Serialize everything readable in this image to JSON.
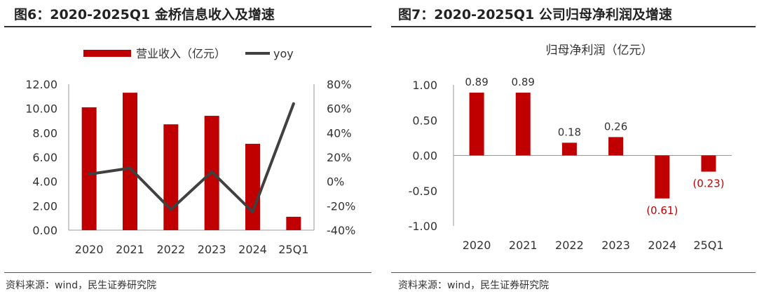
{
  "colors": {
    "bar": "#C00000",
    "line": "#404040",
    "negative_label": "#C00000"
  },
  "left": {
    "title": "图6：2020-2025Q1 金桥信息收入及增速",
    "source": "资料来源：wind，民生证券研究院"
  },
  "right": {
    "title": "图7：2020-2025Q1 公司归母净利润及增速",
    "source": "资料来源：wind，民生证券研究院"
  },
  "chart_data": [
    {
      "type": "bar",
      "title": "",
      "categories": [
        "2020",
        "2021",
        "2022",
        "2023",
        "2024",
        "25Q1"
      ],
      "series": [
        {
          "name": "营业收入（亿元）",
          "type": "bar",
          "axis": "left",
          "values": [
            10.1,
            11.3,
            8.7,
            9.4,
            7.1,
            1.1
          ]
        },
        {
          "name": "yoy",
          "type": "line",
          "axis": "right",
          "values": [
            6,
            11,
            -23,
            8,
            -25,
            64
          ]
        }
      ],
      "ylim": [
        0,
        12
      ],
      "yticks": [
        "0.00",
        "2.00",
        "4.00",
        "6.00",
        "8.00",
        "10.00",
        "12.00"
      ],
      "y2lim": [
        -40,
        80
      ],
      "y2ticks": [
        "-40%",
        "-20%",
        "0%",
        "20%",
        "40%",
        "60%",
        "80%"
      ],
      "xlabel": "",
      "ylabel": "",
      "legend": "top",
      "grid": false
    },
    {
      "type": "bar",
      "title": "归母净利润（亿元）",
      "categories": [
        "2020",
        "2021",
        "2022",
        "2023",
        "2024",
        "25Q1"
      ],
      "values": [
        0.89,
        0.89,
        0.18,
        0.26,
        -0.61,
        -0.23
      ],
      "labels": [
        "0.89",
        "0.89",
        "0.18",
        "0.26",
        "(0.61)",
        "(0.23)"
      ],
      "ylim": [
        -1,
        1
      ],
      "yticks": [
        "-1.00",
        "-0.50",
        "0.00",
        "0.50",
        "1.00"
      ],
      "xlabel": "",
      "ylabel": "",
      "grid": false
    }
  ]
}
